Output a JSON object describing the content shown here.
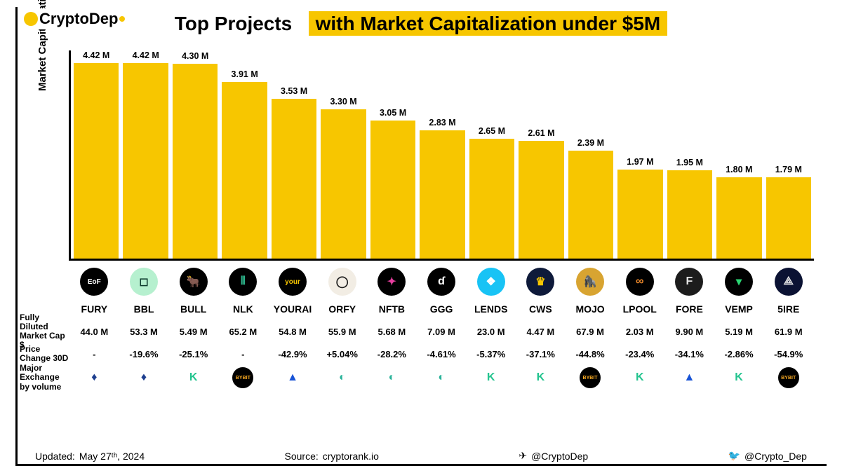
{
  "brand": {
    "name": "CryptoDep"
  },
  "title": {
    "part1": "Top Projects",
    "part2": "with Market Capitalization under $5M"
  },
  "chart": {
    "type": "bar",
    "ylabel": "Market Capitalization $",
    "bar_color": "#f7c600",
    "axis_color": "#000000",
    "max_value": 4.6,
    "bars": [
      {
        "ticker": "FURY",
        "value": 4.42,
        "label": "4.42 M"
      },
      {
        "ticker": "BBL",
        "value": 4.42,
        "label": "4.42 M"
      },
      {
        "ticker": "BULL",
        "value": 4.3,
        "label": "4.30 M"
      },
      {
        "ticker": "NLK",
        "value": 3.91,
        "label": "3.91 M"
      },
      {
        "ticker": "YOURAI",
        "value": 3.53,
        "label": "3.53 M"
      },
      {
        "ticker": "ORFY",
        "value": 3.3,
        "label": "3.30 M"
      },
      {
        "ticker": "NFTB",
        "value": 3.05,
        "label": "3.05 M"
      },
      {
        "ticker": "GGG",
        "value": 2.83,
        "label": "2.83 M"
      },
      {
        "ticker": "LENDS",
        "value": 2.65,
        "label": "2.65 M"
      },
      {
        "ticker": "CWS",
        "value": 2.61,
        "label": "2.61 M"
      },
      {
        "ticker": "MOJO",
        "value": 2.39,
        "label": "2.39 M"
      },
      {
        "ticker": "LPOOL",
        "value": 1.97,
        "label": "1.97 M"
      },
      {
        "ticker": "FORE",
        "value": 1.95,
        "label": "1.95 M"
      },
      {
        "ticker": "VEMP",
        "value": 1.8,
        "label": "1.80 M"
      },
      {
        "ticker": "5IRE",
        "value": 1.79,
        "label": "1.79 M"
      }
    ]
  },
  "row_headers": {
    "fdmc": "Fully Diluted Market Cap $",
    "change": "Price Change 30D",
    "exchange": "Major Exchange by volume"
  },
  "projects": [
    {
      "ticker": "FURY",
      "icon_bg": "#000000",
      "icon_fg": "#ffffff",
      "icon_text": "EoF",
      "fdmc": "44.0 M",
      "change30d": "-",
      "exchange": "huobi"
    },
    {
      "ticker": "BBL",
      "icon_bg": "#b6f0cf",
      "icon_fg": "#0e3b2e",
      "icon_text": "◻",
      "fdmc": "53.3 M",
      "change30d": "-19.6%",
      "exchange": "huobi"
    },
    {
      "ticker": "BULL",
      "icon_bg": "#000000",
      "icon_fg": "#ffffff",
      "icon_text": "🐂",
      "fdmc": "5.49 M",
      "change30d": "-25.1%",
      "exchange": "kucoin"
    },
    {
      "ticker": "NLK",
      "icon_bg": "#000000",
      "icon_fg": "#2db38a",
      "icon_text": "⫴",
      "fdmc": "65.2 M",
      "change30d": "-",
      "exchange": "bybit"
    },
    {
      "ticker": "YOURAI",
      "icon_bg": "#000000",
      "icon_fg": "#f7c600",
      "icon_text": "your",
      "fdmc": "54.8 M",
      "change30d": "-42.9%",
      "exchange": "mexc"
    },
    {
      "ticker": "ORFY",
      "icon_bg": "#f2ede4",
      "icon_fg": "#1a1a1a",
      "icon_text": "◯",
      "fdmc": "55.9 M",
      "change30d": "+5.04%",
      "exchange": "gate"
    },
    {
      "ticker": "NFTB",
      "icon_bg": "#000000",
      "icon_fg": "#e83fa0",
      "icon_text": "✦",
      "fdmc": "5.68 M",
      "change30d": "-28.2%",
      "exchange": "gate"
    },
    {
      "ticker": "GGG",
      "icon_bg": "#000000",
      "icon_fg": "#ffffff",
      "icon_text": "ɗ",
      "fdmc": "7.09 M",
      "change30d": "-4.61%",
      "exchange": "gate"
    },
    {
      "ticker": "LENDS",
      "icon_bg": "#18c3f5",
      "icon_fg": "#ffffff",
      "icon_text": "❖",
      "fdmc": "23.0 M",
      "change30d": "-5.37%",
      "exchange": "kucoin"
    },
    {
      "ticker": "CWS",
      "icon_bg": "#0e1a3a",
      "icon_fg": "#f7c600",
      "icon_text": "♛",
      "fdmc": "4.47 M",
      "change30d": "-37.1%",
      "exchange": "kucoin"
    },
    {
      "ticker": "MOJO",
      "icon_bg": "#d8a431",
      "icon_fg": "#4a2b0a",
      "icon_text": "🦍",
      "fdmc": "67.9 M",
      "change30d": "-44.8%",
      "exchange": "bybit"
    },
    {
      "ticker": "LPOOL",
      "icon_bg": "#000000",
      "icon_fg": "#f08a2b",
      "icon_text": "∞",
      "fdmc": "2.03 M",
      "change30d": "-23.4%",
      "exchange": "kucoin"
    },
    {
      "ticker": "FORE",
      "icon_bg": "#1c1c1c",
      "icon_fg": "#e6e6e6",
      "icon_text": "F",
      "fdmc": "9.90 M",
      "change30d": "-34.1%",
      "exchange": "mexc"
    },
    {
      "ticker": "VEMP",
      "icon_bg": "#000000",
      "icon_fg": "#2bd673",
      "icon_text": "▾",
      "fdmc": "5.19 M",
      "change30d": "-2.86%",
      "exchange": "kucoin"
    },
    {
      "ticker": "5IRE",
      "icon_bg": "#0b1233",
      "icon_fg": "#e6e6e6",
      "icon_text": "⟁",
      "fdmc": "61.9 M",
      "change30d": "-54.9%",
      "exchange": "bybit"
    }
  ],
  "exchanges": {
    "huobi": {
      "bg": "#ffffff",
      "fg": "#1e3f8f",
      "glyph": "♦",
      "border": "#ffffff"
    },
    "kucoin": {
      "bg": "#ffffff",
      "fg": "#24c48f",
      "glyph": "K",
      "border": "#ffffff"
    },
    "bybit": {
      "bg": "#000000",
      "fg": "#f6a821",
      "glyph": "BYBIT",
      "border": "#000000"
    },
    "mexc": {
      "bg": "#ffffff",
      "fg": "#1853d6",
      "glyph": "▲",
      "border": "#ffffff"
    },
    "gate": {
      "bg": "#ffffff",
      "fg": "#2bb39a",
      "glyph": "◐",
      "border": "#ffffff"
    }
  },
  "footer": {
    "updated_label": "Updated:",
    "updated_value": "May 27ᵗʰ, 2024",
    "source_label": "Source:",
    "source_value": "cryptorank.io",
    "telegram": "@CryptoDep",
    "twitter": "@Crypto_Dep"
  }
}
